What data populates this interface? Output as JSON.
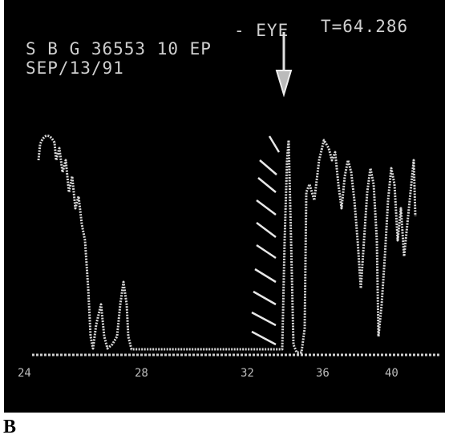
{
  "header": {
    "eye": "- EYE",
    "time": "T=64.286",
    "subject": "S B G 36553 10 EP",
    "date": "SEP/13/91"
  },
  "axis_labels": [
    "24",
    "28",
    "32",
    "36",
    "40"
  ],
  "panel_label": "B"
}
